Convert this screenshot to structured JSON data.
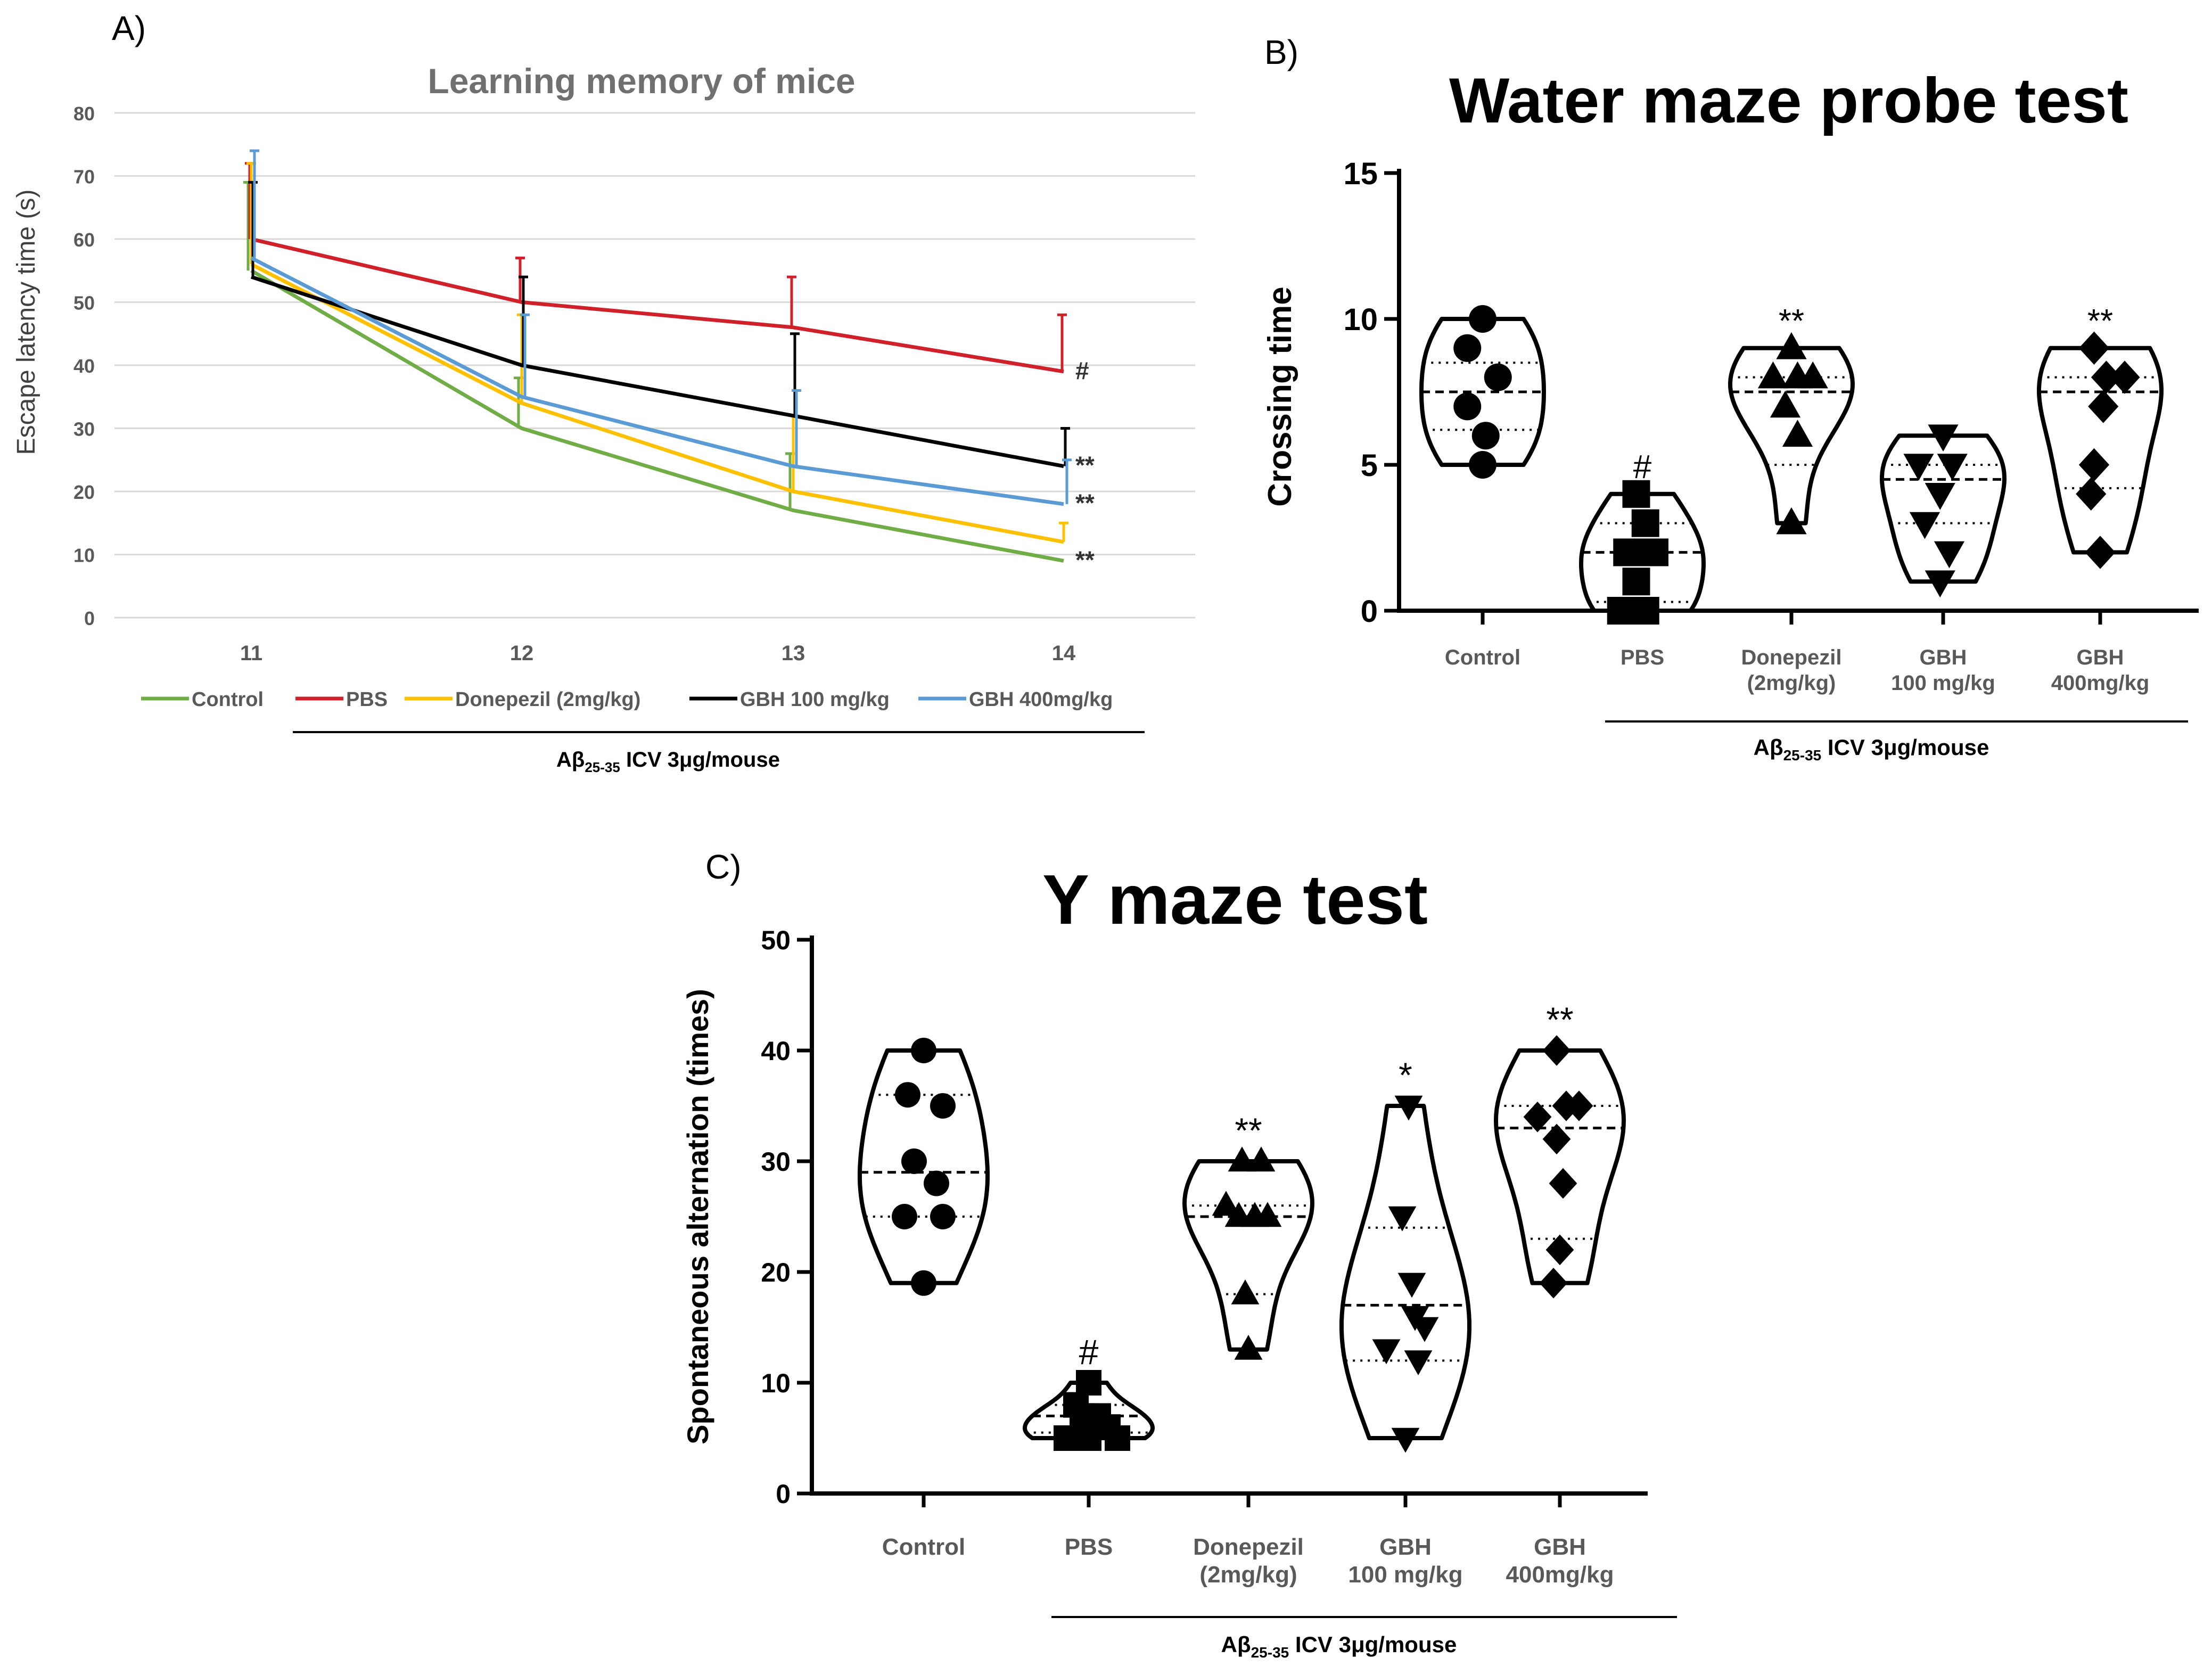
{
  "panels": [
    {
      "label": "A)"
    },
    {
      "label": "B)"
    },
    {
      "label": "C)"
    }
  ],
  "chart_data": [
    {
      "panel": "A)",
      "type": "line",
      "title": "Learning memory of mice",
      "xlabel": "",
      "ylabel": "Escape latency time (s)",
      "categories": [
        "11",
        "12",
        "13",
        "14"
      ],
      "ylim": [
        0,
        80
      ],
      "yticks": [
        0,
        10,
        20,
        30,
        40,
        50,
        60,
        70,
        80
      ],
      "grid": true,
      "legend_position": "bottom",
      "series": [
        {
          "name": "Control",
          "color": "#70ad47",
          "values": [
            55,
            30,
            17,
            9
          ],
          "errors": [
            14,
            8,
            9,
            0
          ]
        },
        {
          "name": "PBS",
          "color": "#d0202a",
          "values": [
            60,
            50,
            46,
            39
          ],
          "errors": [
            12,
            7,
            8,
            9
          ]
        },
        {
          "name": "Donepezil (2mg/kg)",
          "color": "#ffc000",
          "values": [
            56,
            34,
            20,
            12
          ],
          "errors": [
            16,
            14,
            12,
            3
          ]
        },
        {
          "name": "GBH 100 mg/kg",
          "color": "#000000",
          "values": [
            54,
            40,
            32,
            24
          ],
          "errors": [
            15,
            14,
            13,
            6
          ]
        },
        {
          "name": "GBH 400mg/kg",
          "color": "#5b9bd5",
          "values": [
            57,
            35,
            24,
            18
          ],
          "errors": [
            17,
            13,
            12,
            7
          ]
        }
      ],
      "annotations": [
        {
          "text": "#",
          "series": "PBS",
          "category": "14"
        },
        {
          "text": "**",
          "series": "GBH 100 mg/kg",
          "category": "14"
        },
        {
          "text": "**",
          "series": "GBH 400mg/kg",
          "category": "14"
        },
        {
          "text": "**",
          "series": "Control",
          "category": "14"
        }
      ],
      "group_label": {
        "main": "Aβ",
        "sub": "25-35",
        "rest": " ICV 3μg/mouse"
      }
    },
    {
      "panel": "B)",
      "type": "violin",
      "title": "Water maze probe test",
      "xlabel": "",
      "ylabel": "Crossing time",
      "ylim": [
        0,
        15
      ],
      "yticks": [
        0,
        5,
        10,
        15
      ],
      "categories": [
        {
          "lines": [
            "Control"
          ]
        },
        {
          "lines": [
            "PBS"
          ]
        },
        {
          "lines": [
            "Donepezil",
            "(2mg/kg)"
          ]
        },
        {
          "lines": [
            "GBH",
            "100 mg/kg"
          ]
        },
        {
          "lines": [
            "GBH",
            "400mg/kg"
          ]
        }
      ],
      "groups": [
        {
          "marker": "circle",
          "min": 5,
          "max": 10,
          "median": 7.5,
          "q1": 6.2,
          "q3": 8.5,
          "points": [
            [
              0,
              10
            ],
            [
              -0.25,
              9
            ],
            [
              0.25,
              8
            ],
            [
              -0.25,
              7
            ],
            [
              0.05,
              6
            ],
            [
              0,
              5
            ]
          ],
          "sig": ""
        },
        {
          "marker": "square",
          "min": 0,
          "max": 4,
          "median": 2,
          "q1": 0.3,
          "q3": 3,
          "points": [
            [
              -0.35,
              0
            ],
            [
              0.05,
              0
            ],
            [
              -0.1,
              1
            ],
            [
              0.2,
              2
            ],
            [
              -0.25,
              2
            ],
            [
              0.05,
              3
            ],
            [
              -0.1,
              4
            ]
          ],
          "sig": "#"
        },
        {
          "marker": "triangle-up",
          "min": 3,
          "max": 9,
          "median": 7.5,
          "q1": 5,
          "q3": 8,
          "points": [
            [
              0,
              9
            ],
            [
              -0.3,
              8
            ],
            [
              0.1,
              8
            ],
            [
              0.35,
              8
            ],
            [
              -0.1,
              7
            ],
            [
              0.1,
              6
            ],
            [
              0,
              3
            ]
          ],
          "sig": "**"
        },
        {
          "marker": "triangle-down",
          "min": 1,
          "max": 6,
          "median": 4.5,
          "q1": 3,
          "q3": 5,
          "points": [
            [
              0,
              6
            ],
            [
              -0.4,
              5
            ],
            [
              0.15,
              5
            ],
            [
              -0.05,
              4
            ],
            [
              -0.3,
              3
            ],
            [
              0.1,
              2
            ],
            [
              -0.05,
              1
            ]
          ],
          "sig": ""
        },
        {
          "marker": "diamond",
          "min": 2,
          "max": 9,
          "median": 7.5,
          "q1": 4.2,
          "q3": 8,
          "points": [
            [
              -0.1,
              9
            ],
            [
              0.1,
              8
            ],
            [
              0.4,
              8
            ],
            [
              0.05,
              7
            ],
            [
              -0.1,
              5
            ],
            [
              -0.15,
              4
            ],
            [
              0,
              2
            ]
          ],
          "sig": "**"
        }
      ],
      "group_label": {
        "main": "Aβ",
        "sub": "25-35",
        "rest": " ICV 3μg/mouse"
      }
    },
    {
      "panel": "C)",
      "type": "violin",
      "title": "Y maze test",
      "xlabel": "",
      "ylabel": "Spontaneous alternation (times)",
      "ylim": [
        0,
        50
      ],
      "yticks": [
        0,
        10,
        20,
        30,
        40,
        50
      ],
      "categories": [
        {
          "lines": [
            "Control"
          ]
        },
        {
          "lines": [
            "PBS"
          ]
        },
        {
          "lines": [
            "Donepezil",
            "(2mg/kg)"
          ]
        },
        {
          "lines": [
            "GBH",
            "100 mg/kg"
          ]
        },
        {
          "lines": [
            "GBH",
            "400mg/kg"
          ]
        }
      ],
      "groups": [
        {
          "marker": "circle",
          "min": 19,
          "max": 40,
          "median": 29,
          "q1": 25,
          "q3": 36,
          "points": [
            [
              0,
              40
            ],
            [
              -0.25,
              36
            ],
            [
              0.3,
              35
            ],
            [
              -0.15,
              30
            ],
            [
              0.2,
              28
            ],
            [
              -0.3,
              25
            ],
            [
              0.3,
              25
            ],
            [
              0,
              19
            ]
          ],
          "sig": ""
        },
        {
          "marker": "square",
          "min": 5,
          "max": 10,
          "median": 7,
          "q1": 5.5,
          "q3": 8,
          "points": [
            [
              0,
              10
            ],
            [
              -0.2,
              8
            ],
            [
              0.15,
              7
            ],
            [
              -0.1,
              7
            ],
            [
              0.3,
              6
            ],
            [
              -0.35,
              5
            ],
            [
              0,
              5
            ],
            [
              0.45,
              5
            ]
          ],
          "sig": "#"
        },
        {
          "marker": "triangle-up",
          "min": 13,
          "max": 30,
          "median": 25,
          "q1": 18,
          "q3": 26,
          "points": [
            [
              -0.1,
              30
            ],
            [
              0.2,
              30
            ],
            [
              -0.35,
              26
            ],
            [
              0.1,
              25
            ],
            [
              0.3,
              25
            ],
            [
              -0.15,
              25
            ],
            [
              -0.05,
              18
            ],
            [
              0,
              13
            ]
          ],
          "sig": "**"
        },
        {
          "marker": "triangle-down",
          "min": 5,
          "max": 35,
          "median": 17,
          "q1": 12,
          "q3": 24,
          "points": [
            [
              0.05,
              35
            ],
            [
              -0.05,
              25
            ],
            [
              0.1,
              19
            ],
            [
              0.3,
              15
            ],
            [
              0.15,
              16
            ],
            [
              -0.3,
              13
            ],
            [
              0.2,
              12
            ],
            [
              0,
              5
            ]
          ],
          "sig": "*"
        },
        {
          "marker": "diamond",
          "min": 19,
          "max": 40,
          "median": 33,
          "q1": 23,
          "q3": 35,
          "points": [
            [
              -0.05,
              40
            ],
            [
              0.3,
              35
            ],
            [
              -0.35,
              34
            ],
            [
              0.1,
              35
            ],
            [
              -0.05,
              32
            ],
            [
              0.05,
              28
            ],
            [
              0,
              22
            ],
            [
              -0.1,
              19
            ]
          ],
          "sig": "**"
        }
      ],
      "group_label": {
        "main": "Aβ",
        "sub": "25-35",
        "rest": " ICV 3μg/mouse"
      }
    }
  ]
}
